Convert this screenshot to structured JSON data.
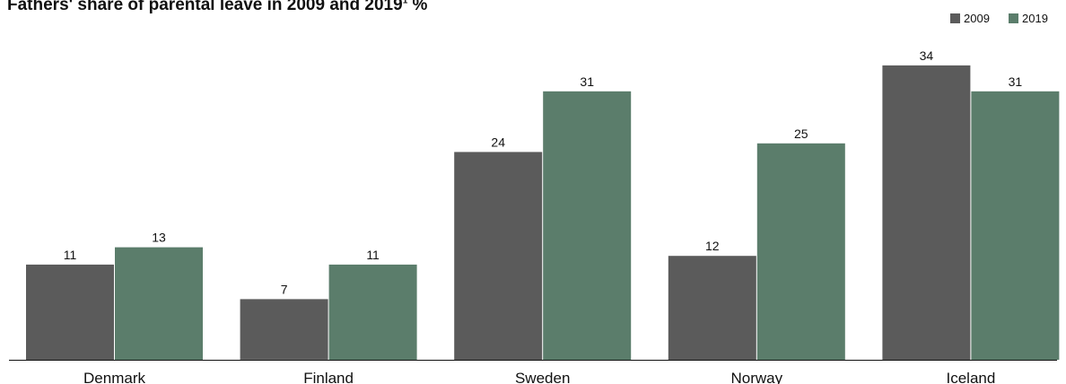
{
  "chart_data": {
    "type": "bar",
    "title": "Fathers' share of parental leave in 2009 and 2019",
    "title_superscript": "1",
    "title_unit": "%",
    "categories": [
      "Denmark",
      "Finland",
      "Sweden",
      "Norway",
      "Iceland"
    ],
    "series": [
      {
        "name": "2009",
        "color": "#5b5b5b",
        "values": [
          11,
          7,
          24,
          12,
          34
        ]
      },
      {
        "name": "2019",
        "color": "#5b7d6b",
        "values": [
          13,
          11,
          31,
          25,
          31
        ]
      }
    ],
    "ylim": [
      0,
      40
    ],
    "grid": false,
    "legend": "top-right",
    "data_labels": true
  }
}
